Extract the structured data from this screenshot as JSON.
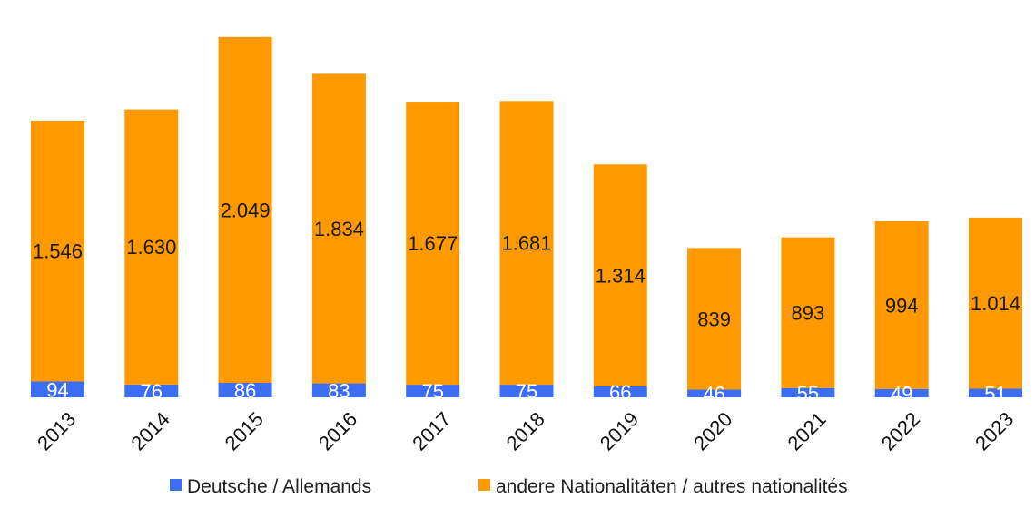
{
  "chart_data": {
    "type": "bar",
    "stacked": true,
    "categories": [
      "2013",
      "2014",
      "2015",
      "2016",
      "2017",
      "2018",
      "2019",
      "2020",
      "2021",
      "2022",
      "2023"
    ],
    "series": [
      {
        "name": "Deutsche / Allemands",
        "color": "#3d6df2",
        "values": [
          94,
          76,
          86,
          83,
          75,
          75,
          66,
          46,
          55,
          49,
          51
        ],
        "labels": [
          "94",
          "76",
          "86",
          "83",
          "75",
          "75",
          "66",
          "46",
          "55",
          "49",
          "51"
        ]
      },
      {
        "name": "andere Nationalitäten / autres nationalités",
        "color": "#ff9900",
        "values": [
          1546,
          1630,
          2049,
          1834,
          1677,
          1681,
          1314,
          839,
          893,
          994,
          1014
        ],
        "labels": [
          "1.546",
          "1.630",
          "2.049",
          "1.834",
          "1.677",
          "1.681",
          "1.314",
          "839",
          "893",
          "994",
          "1.014"
        ]
      }
    ],
    "title": "",
    "xlabel": "",
    "ylabel": "",
    "ylim": [
      0,
      2150
    ],
    "grid": false,
    "legend": "bottom"
  }
}
